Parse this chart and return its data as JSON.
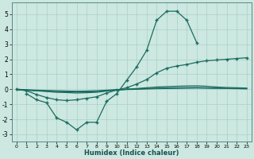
{
  "background_color": "#cce8e0",
  "grid_color": "#aacfc8",
  "line_color": "#1a6b60",
  "xlabel": "Humidex (Indice chaleur)",
  "xlim": [
    -0.5,
    23.5
  ],
  "ylim": [
    -3.5,
    5.8
  ],
  "xticks": [
    0,
    1,
    2,
    3,
    4,
    5,
    6,
    7,
    8,
    9,
    10,
    11,
    12,
    13,
    14,
    15,
    16,
    17,
    18,
    19,
    20,
    21,
    22,
    23
  ],
  "yticks": [
    -3,
    -2,
    -1,
    0,
    1,
    2,
    3,
    4,
    5
  ],
  "x": [
    0,
    1,
    2,
    3,
    4,
    5,
    6,
    7,
    8,
    9,
    10,
    11,
    12,
    13,
    14,
    15,
    16,
    17,
    18,
    19,
    20,
    21,
    22,
    23
  ],
  "line_peak": [
    null,
    -0.3,
    -0.7,
    -0.9,
    -1.9,
    -2.2,
    -2.7,
    -2.2,
    -2.2,
    -0.8,
    -0.3,
    0.6,
    1.5,
    2.6,
    4.6,
    5.2,
    5.2,
    4.6,
    3.1,
    null,
    null,
    null,
    null,
    null
  ],
  "line_diag": [
    0.0,
    -0.1,
    -0.35,
    -0.55,
    -0.7,
    -0.75,
    -0.7,
    -0.6,
    -0.5,
    -0.25,
    -0.05,
    0.1,
    0.35,
    0.65,
    1.1,
    1.4,
    1.55,
    1.65,
    1.8,
    1.9,
    1.95,
    2.0,
    2.05,
    2.1
  ],
  "line_flat1": [
    0.0,
    -0.05,
    -0.1,
    -0.15,
    -0.2,
    -0.22,
    -0.25,
    -0.23,
    -0.2,
    -0.12,
    -0.05,
    0.0,
    0.05,
    0.1,
    0.15,
    0.18,
    0.2,
    0.22,
    0.23,
    0.2,
    0.15,
    0.12,
    0.1,
    0.08
  ],
  "line_flat2": [
    0.0,
    -0.03,
    -0.06,
    -0.08,
    -0.1,
    -0.12,
    -0.13,
    -0.12,
    -0.1,
    -0.06,
    -0.02,
    0.0,
    0.02,
    0.05,
    0.07,
    0.09,
    0.1,
    0.11,
    0.12,
    0.1,
    0.08,
    0.06,
    0.05,
    0.04
  ],
  "line_flat3": [
    -0.05,
    -0.07,
    -0.1,
    -0.12,
    -0.15,
    -0.16,
    -0.18,
    -0.17,
    -0.15,
    -0.1,
    -0.05,
    -0.02,
    0.0,
    0.02,
    0.04,
    0.05,
    0.06,
    0.07,
    0.08,
    0.07,
    0.06,
    0.05,
    0.04,
    0.03
  ]
}
